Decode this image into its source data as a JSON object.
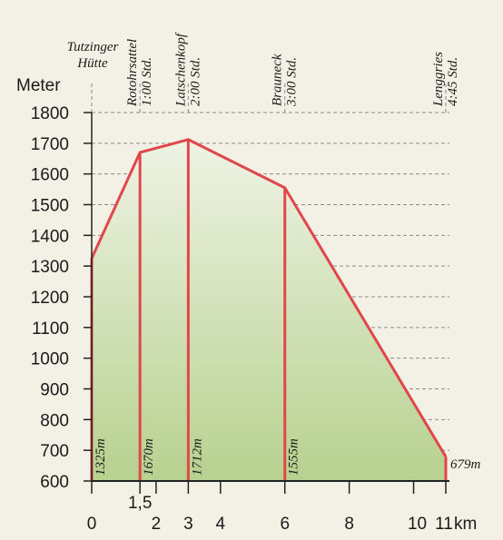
{
  "chart_data": {
    "type": "area",
    "ylabel": "Meter",
    "xlabel": "km",
    "ylim": [
      600,
      1800
    ],
    "xlim": [
      0,
      11
    ],
    "yticks": [
      600,
      700,
      800,
      900,
      1000,
      1100,
      1200,
      1300,
      1400,
      1500,
      1600,
      1700,
      1800
    ],
    "xticks": [
      {
        "value": 0,
        "label": "0"
      },
      {
        "value": 1.5,
        "label": "1,5"
      },
      {
        "value": 2,
        "label": "2"
      },
      {
        "value": 3,
        "label": "3"
      },
      {
        "value": 4,
        "label": "4"
      },
      {
        "value": 6,
        "label": "6"
      },
      {
        "value": 8,
        "label": "8"
      },
      {
        "value": 10,
        "label": "10"
      },
      {
        "value": 11,
        "label": "11"
      }
    ],
    "profile": [
      {
        "x": 0,
        "y": 1325
      },
      {
        "x": 1.5,
        "y": 1670
      },
      {
        "x": 3,
        "y": 1712
      },
      {
        "x": 6,
        "y": 1555
      },
      {
        "x": 11,
        "y": 679
      }
    ],
    "stations": [
      {
        "x": 0,
        "name": "Tutzinger Hütte",
        "time": "",
        "elevation_label": "1325m"
      },
      {
        "x": 1.5,
        "name": "Rotohrsattel",
        "time": "1:00 Std.",
        "elevation_label": "1670m"
      },
      {
        "x": 3,
        "name": "Latschenkopf",
        "time": "2:00 Std.",
        "elevation_label": "1712m"
      },
      {
        "x": 6,
        "name": "Brauneck",
        "time": "3:00 Std.",
        "elevation_label": "1555m"
      },
      {
        "x": 11,
        "name": "Lenggries",
        "time": "4:45 Std.",
        "elevation_label": "679m"
      }
    ],
    "grid": true,
    "colors": {
      "line": "#e0464a",
      "fill_top": "#eef3e4",
      "fill_bottom": "#b7d18f",
      "grid": "#8a8a8a",
      "axis": "#222222"
    }
  }
}
